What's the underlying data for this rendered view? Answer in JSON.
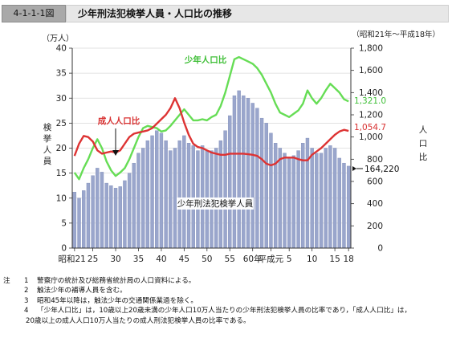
{
  "header": {
    "figure_number": "4-1-1-1図",
    "title": "少年刑法犯検挙人員・人口比の推移"
  },
  "chart_data": {
    "type": "bar+line",
    "period_note": "（昭和21年～平成18年）",
    "left_axis": {
      "unit_label": "（万人）",
      "title_chars": [
        "検",
        "挙",
        "人",
        "員"
      ],
      "range": [
        0,
        40
      ],
      "ticks": [
        0,
        5,
        10,
        15,
        20,
        25,
        30,
        35,
        40
      ]
    },
    "right_axis": {
      "title_chars": [
        "人",
        "口",
        "比"
      ],
      "range": [
        0,
        1800
      ],
      "ticks": [
        "0",
        "200",
        "400",
        "600",
        "800",
        "1,000",
        "1,200",
        "1,400",
        "1,600",
        "1,800"
      ]
    },
    "x_tick_labels": [
      "昭和21",
      "25",
      "30",
      "35",
      "40",
      "45",
      "50",
      "55",
      "60年",
      "平成元",
      "5",
      "10",
      "15",
      "18"
    ],
    "years": [
      "昭和21",
      "昭和22",
      "昭和23",
      "昭和24",
      "昭和25",
      "昭和26",
      "昭和27",
      "昭和28",
      "昭和29",
      "昭和30",
      "昭和31",
      "昭和32",
      "昭和33",
      "昭和34",
      "昭和35",
      "昭和36",
      "昭和37",
      "昭和38",
      "昭和39",
      "昭和40",
      "昭和41",
      "昭和42",
      "昭和43",
      "昭和44",
      "昭和45",
      "昭和46",
      "昭和47",
      "昭和48",
      "昭和49",
      "昭和50",
      "昭和51",
      "昭和52",
      "昭和53",
      "昭和54",
      "昭和55",
      "昭和56",
      "昭和57",
      "昭和58",
      "昭和59",
      "昭和60",
      "昭和61",
      "昭和62",
      "昭和63",
      "平成元",
      "平成2",
      "平成3",
      "平成4",
      "平成5",
      "平成6",
      "平成7",
      "平成8",
      "平成9",
      "平成10",
      "平成11",
      "平成12",
      "平成13",
      "平成14",
      "平成15",
      "平成16",
      "平成17",
      "平成18"
    ],
    "series": [
      {
        "name": "少年刑法犯検挙人員",
        "kind": "bar",
        "axis": "left",
        "color": "#9aa6cc",
        "values": [
          11.2,
          10.0,
          11.5,
          13.0,
          14.5,
          16.0,
          15.2,
          13.0,
          12.5,
          12.0,
          12.3,
          13.5,
          15.0,
          17.0,
          19.0,
          20.0,
          21.5,
          22.5,
          23.5,
          23.0,
          21.5,
          19.5,
          20.0,
          21.5,
          22.5,
          21.0,
          20.5,
          19.5,
          20.5,
          19.5,
          19.5,
          20.0,
          21.5,
          23.5,
          26.5,
          30.5,
          31.5,
          30.5,
          30.0,
          29.0,
          28.0,
          26.0,
          25.0,
          23.0,
          21.0,
          20.0,
          19.0,
          18.0,
          18.5,
          19.5,
          21.0,
          22.0,
          20.0,
          19.0,
          19.0,
          20.0,
          20.5,
          20.0,
          18.0,
          17.0,
          16.4
        ]
      },
      {
        "name": "少年人口比",
        "kind": "line",
        "axis": "right",
        "color": "#66dd55",
        "values": [
          680,
          620,
          720,
          800,
          900,
          980,
          900,
          780,
          700,
          650,
          680,
          720,
          800,
          900,
          1000,
          1080,
          1100,
          1090,
          1080,
          1050,
          1060,
          1100,
          1150,
          1200,
          1250,
          1200,
          1150,
          1150,
          1160,
          1150,
          1180,
          1200,
          1280,
          1400,
          1550,
          1700,
          1720,
          1700,
          1680,
          1660,
          1620,
          1560,
          1480,
          1400,
          1300,
          1220,
          1200,
          1180,
          1210,
          1240,
          1300,
          1420,
          1350,
          1300,
          1350,
          1420,
          1480,
          1440,
          1400,
          1340,
          1321
        ]
      },
      {
        "name": "成人人口比",
        "kind": "line",
        "axis": "right",
        "color": "#dd3333",
        "values": [
          830,
          940,
          1010,
          1000,
          960,
          880,
          850,
          860,
          870,
          860,
          880,
          940,
          1000,
          1030,
          1040,
          1050,
          1060,
          1080,
          1120,
          1160,
          1200,
          1260,
          1350,
          1260,
          1130,
          1020,
          940,
          910,
          900,
          880,
          860,
          850,
          840,
          840,
          850,
          850,
          850,
          850,
          845,
          840,
          830,
          800,
          760,
          745,
          760,
          800,
          815,
          815,
          815,
          800,
          790,
          790,
          840,
          870,
          900,
          940,
          980,
          1020,
          1050,
          1065,
          1055
        ]
      }
    ],
    "annotations": {
      "boys_line_label": "少年人口比",
      "adult_line_label": "成人人口比",
      "bars_label": "少年刑法犯検挙人員",
      "end_value_boys": "1,321.0",
      "end_value_adult": "1,054.7",
      "end_value_bars": "164,220"
    }
  },
  "notes": {
    "head": "注",
    "items": [
      {
        "num": "1",
        "text": "警察庁の統計及び総務省統計局の人口資料による。"
      },
      {
        "num": "2",
        "text": "触法少年の補導人員を含む。"
      },
      {
        "num": "3",
        "text": "昭和45年以降は，触法少年の交通関係業過を除く。"
      },
      {
        "num": "4",
        "text": "「少年人口比」は，10歳以上20歳未満の少年人口10万人当たりの少年刑法犯検挙人員の比率であり，「成人人口比」は，"
      }
    ],
    "continuation": "20歳以上の成人人口10万人当たりの成人刑法犯検挙人員の比率である。"
  }
}
